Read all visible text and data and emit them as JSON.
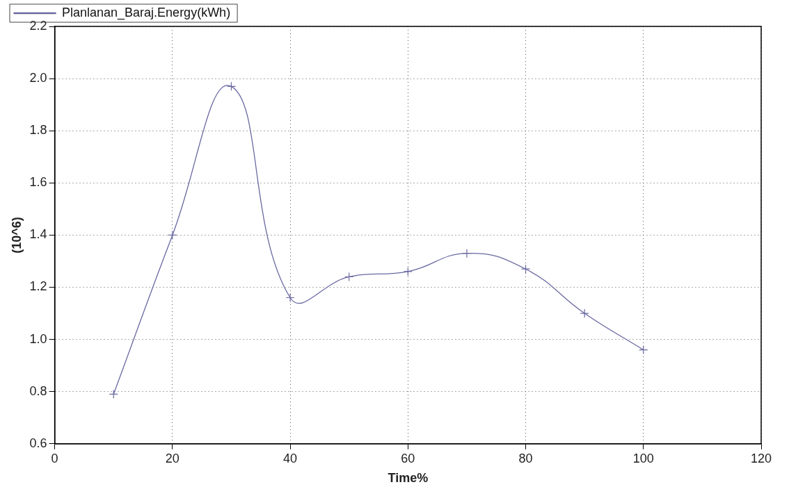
{
  "chart_data": {
    "type": "line",
    "xlabel": "Time%",
    "ylabel": "(10^6)",
    "x": [
      10,
      20,
      30,
      40,
      50,
      60,
      70,
      80,
      90,
      100
    ],
    "series": [
      {
        "name": "Planlanan_Baraj.Energy(kWh)",
        "color": "#6868a0",
        "values": [
          0.79,
          1.4,
          1.97,
          1.16,
          1.24,
          1.26,
          1.33,
          1.27,
          1.1,
          0.96
        ]
      }
    ],
    "xlim": [
      0,
      120
    ],
    "xticks": [
      0,
      20,
      40,
      60,
      80,
      100,
      120
    ],
    "ylim": [
      0.6,
      2.2
    ],
    "yticks": [
      0.6,
      0.8,
      {
        "value": 1,
        "label": "1.0"
      },
      1.2,
      1.4,
      1.6,
      1.8,
      {
        "value": 2,
        "label": "2.0"
      },
      2.2
    ],
    "grid": true,
    "legend": "top left",
    "marker": "cross",
    "line_style": "solid"
  }
}
